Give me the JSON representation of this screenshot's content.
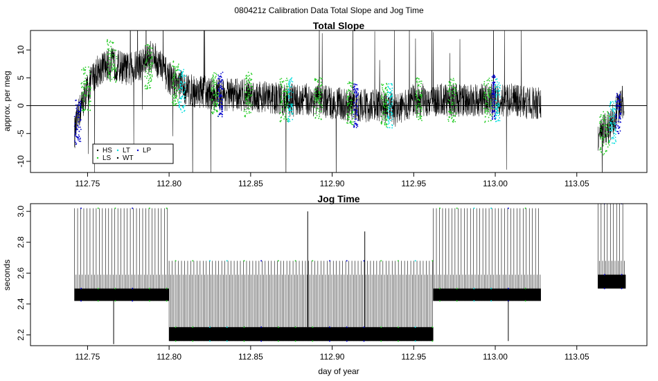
{
  "figure_title": "080421z   Calibration Data Total Slope and Jog Time",
  "colors": {
    "HS": "#000000",
    "LS": "#22cc22",
    "LT": "#00dddd",
    "WT": "#000000",
    "LP": "#0000cc",
    "trace": "#000000"
  },
  "chart_data": [
    {
      "type": "line",
      "title": "Total Slope",
      "xlabel": "",
      "ylabel": "approx. per meg",
      "xlim": [
        112.715,
        113.093
      ],
      "ylim": [
        -12,
        13.5
      ],
      "xticks": [
        112.75,
        112.8,
        112.85,
        112.9,
        112.95,
        113.0,
        113.05
      ],
      "xtick_labels": [
        "112.75",
        "112.80",
        "112.85",
        "112.90",
        "112.95",
        "113.00",
        "113.05"
      ],
      "yticks": [
        -10,
        -5,
        0,
        5,
        10
      ],
      "ytick_labels": [
        "-10",
        "-5",
        "0",
        "5",
        "10"
      ],
      "hline": 0,
      "legend": {
        "placement": "bottom-left",
        "entries": [
          "HS",
          "LT",
          "LP",
          "LS",
          "WT"
        ]
      },
      "segments": [
        {
          "x": [
            112.742,
            112.745,
            112.75,
            112.755,
            112.76,
            112.765,
            112.77,
            112.775,
            112.78,
            112.785,
            112.79,
            112.795,
            112.8,
            112.805,
            112.81,
            112.815,
            112.82,
            112.83,
            112.84,
            112.85,
            112.86,
            112.87,
            112.88,
            112.89,
            112.9,
            112.91,
            112.92,
            112.93,
            112.94,
            112.95,
            112.96,
            112.97,
            112.98,
            112.99,
            113.0,
            113.01,
            113.02,
            113.028
          ],
          "y": [
            -5,
            -1,
            3,
            6,
            7,
            7.5,
            7,
            6.5,
            7,
            8,
            9,
            7,
            5,
            4,
            3,
            2.5,
            2.5,
            2,
            2,
            2,
            1.5,
            1,
            1,
            1,
            0.5,
            0,
            0,
            0,
            -1,
            1,
            1,
            1,
            1,
            1,
            1,
            1,
            0.5,
            0.5
          ],
          "spread": 3
        },
        {
          "x": [
            113.063,
            113.065,
            113.068,
            113.07,
            113.073,
            113.076,
            113.079
          ],
          "y": [
            -6,
            -5,
            -4,
            -4,
            -2,
            0,
            1
          ],
          "spread": 3
        }
      ],
      "colored_points": [
        {
          "group": "LP",
          "x_start": 112.742,
          "x_end": 112.746,
          "y": -3
        },
        {
          "group": "LS",
          "x_start": 112.746,
          "x_end": 112.752,
          "y": 3
        },
        {
          "group": "LS",
          "x_start": 112.762,
          "x_end": 112.768,
          "y": 8
        },
        {
          "group": "LS",
          "x_start": 112.785,
          "x_end": 112.79,
          "y": 7
        },
        {
          "group": "LS",
          "x_start": 112.802,
          "x_end": 112.806,
          "y": 4
        },
        {
          "group": "LT",
          "x_start": 112.806,
          "x_end": 112.81,
          "y": 2.5
        },
        {
          "group": "LS",
          "x_start": 112.826,
          "x_end": 112.83,
          "y": 2
        },
        {
          "group": "LP",
          "x_start": 112.83,
          "x_end": 112.833,
          "y": 2
        },
        {
          "group": "LS",
          "x_start": 112.846,
          "x_end": 112.851,
          "y": 2
        },
        {
          "group": "LS",
          "x_start": 112.868,
          "x_end": 112.873,
          "y": 1
        },
        {
          "group": "LT",
          "x_start": 112.873,
          "x_end": 112.876,
          "y": 1
        },
        {
          "group": "LS",
          "x_start": 112.889,
          "x_end": 112.894,
          "y": 1
        },
        {
          "group": "LS",
          "x_start": 112.909,
          "x_end": 112.913,
          "y": 0.5
        },
        {
          "group": "LP",
          "x_start": 112.913,
          "x_end": 112.916,
          "y": 0
        },
        {
          "group": "LS",
          "x_start": 112.93,
          "x_end": 112.934,
          "y": 0
        },
        {
          "group": "LT",
          "x_start": 112.934,
          "x_end": 112.937,
          "y": 0
        },
        {
          "group": "LS",
          "x_start": 112.951,
          "x_end": 112.955,
          "y": 1
        },
        {
          "group": "LS",
          "x_start": 112.971,
          "x_end": 112.976,
          "y": 1
        },
        {
          "group": "LS",
          "x_start": 112.993,
          "x_end": 112.998,
          "y": 1
        },
        {
          "group": "LP",
          "x_start": 112.998,
          "x_end": 113.0,
          "y": 1.5
        },
        {
          "group": "LT",
          "x_start": 113.0,
          "x_end": 113.003,
          "y": 1
        },
        {
          "group": "LS",
          "x_start": 113.064,
          "x_end": 113.07,
          "y": -5
        },
        {
          "group": "LT",
          "x_start": 113.07,
          "x_end": 113.074,
          "y": -3
        },
        {
          "group": "LP",
          "x_start": 113.074,
          "x_end": 113.077,
          "y": -1
        }
      ]
    },
    {
      "type": "line",
      "title": "Jog Time",
      "xlabel": "day of year",
      "ylabel": "seconds",
      "xlim": [
        112.715,
        113.093
      ],
      "ylim": [
        2.13,
        3.05
      ],
      "xticks": [
        112.75,
        112.8,
        112.85,
        112.9,
        112.95,
        113.0,
        113.05
      ],
      "xtick_labels": [
        "112.75",
        "112.80",
        "112.85",
        "112.90",
        "112.95",
        "113.00",
        "113.05"
      ],
      "yticks": [
        2.2,
        2.4,
        2.6,
        2.8,
        3.0
      ],
      "ytick_labels": [
        "2.2",
        "2.4",
        "2.6",
        "2.8",
        "3.0"
      ],
      "segments": [
        {
          "x_start": 112.742,
          "x_end": 112.8,
          "base": 2.42,
          "band_top": 2.5,
          "low_tick": 2.59,
          "high_tick": 3.02
        },
        {
          "x_start": 112.8,
          "x_end": 112.962,
          "base": 2.16,
          "band_top": 2.25,
          "low_tick": 2.59,
          "high_tick": 2.68
        },
        {
          "x_start": 112.962,
          "x_end": 113.028,
          "base": 2.42,
          "band_top": 2.5,
          "low_tick": 2.59,
          "high_tick": 3.02
        },
        {
          "x_start": 113.063,
          "x_end": 113.08,
          "base": 2.5,
          "band_top": 2.59,
          "low_tick": 2.68,
          "high_tick": 3.05
        }
      ],
      "spikes": [
        {
          "x": 112.766,
          "y_low": 2.14,
          "y_high": 2.42
        },
        {
          "x": 113.008,
          "y_low": 2.16,
          "y_high": 2.42
        },
        {
          "x": 112.885,
          "y_low": 2.25,
          "y_high": 3.0
        },
        {
          "x": 112.92,
          "y_low": 2.25,
          "y_high": 2.87
        }
      ]
    }
  ]
}
